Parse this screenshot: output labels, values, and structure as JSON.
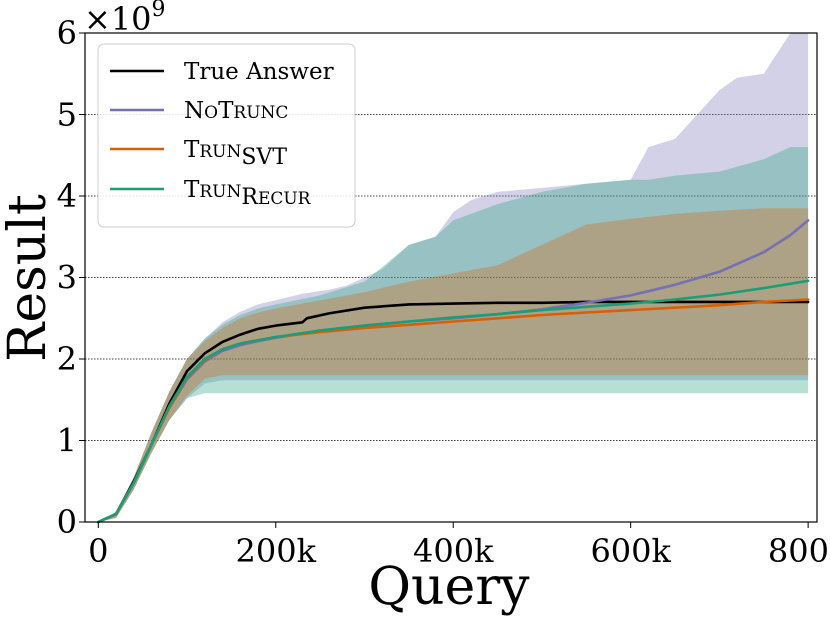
{
  "chart_data": {
    "type": "line",
    "xlabel": "Query",
    "ylabel": "Result",
    "y_scale_text": "×10",
    "y_scale_exponent": "9",
    "xlim": [
      -15000,
      810000
    ],
    "ylim": [
      0,
      6
    ],
    "x_ticks": [
      0,
      200000,
      400000,
      600000,
      800000
    ],
    "x_tick_labels": [
      "0",
      "200k",
      "400k",
      "600k",
      "800k"
    ],
    "y_ticks": [
      0,
      1,
      2,
      3,
      4,
      5,
      6
    ],
    "y_tick_labels": [
      "0",
      "1",
      "2",
      "3",
      "4",
      "5",
      "6"
    ],
    "grid": "horizontal dotted",
    "legend_position": "top-left",
    "series": [
      {
        "name": "True Answer",
        "color": "#000000",
        "x": [
          0,
          20000,
          40000,
          60000,
          80000,
          100000,
          120000,
          140000,
          160000,
          180000,
          200000,
          230000,
          235000,
          260000,
          300000,
          350000,
          400000,
          450000,
          500000,
          550000,
          600000,
          650000,
          700000,
          750000,
          800000
        ],
        "y": [
          0,
          0.1,
          0.5,
          0.95,
          1.45,
          1.85,
          2.07,
          2.21,
          2.3,
          2.37,
          2.41,
          2.45,
          2.5,
          2.56,
          2.63,
          2.67,
          2.68,
          2.69,
          2.69,
          2.7,
          2.7,
          2.7,
          2.7,
          2.7,
          2.7
        ]
      },
      {
        "name": "NoTrunc",
        "legend_parts": [
          {
            "text": "N",
            "size": "big"
          },
          {
            "text": "O",
            "size": "small"
          },
          {
            "text": "T",
            "size": "big"
          },
          {
            "text": "RUNC",
            "size": "small"
          }
        ],
        "color": "#7570b3",
        "x": [
          0,
          20000,
          40000,
          60000,
          80000,
          100000,
          120000,
          140000,
          160000,
          180000,
          200000,
          250000,
          300000,
          350000,
          400000,
          450000,
          500000,
          550000,
          600000,
          650000,
          700000,
          750000,
          780000,
          800000
        ],
        "y": [
          0,
          0.1,
          0.48,
          0.95,
          1.4,
          1.75,
          1.97,
          2.1,
          2.17,
          2.22,
          2.26,
          2.35,
          2.41,
          2.46,
          2.5,
          2.55,
          2.61,
          2.69,
          2.78,
          2.91,
          3.07,
          3.31,
          3.52,
          3.7
        ]
      },
      {
        "name": "TrunSVT",
        "legend_parts": [
          {
            "text": "T",
            "size": "big"
          },
          {
            "text": "RUN",
            "size": "small"
          },
          {
            "text": "SVT",
            "size": "sub"
          }
        ],
        "color": "#d95f02",
        "x": [
          0,
          20000,
          40000,
          60000,
          80000,
          100000,
          120000,
          140000,
          160000,
          180000,
          200000,
          250000,
          300000,
          350000,
          400000,
          450000,
          500000,
          550000,
          600000,
          650000,
          700000,
          750000,
          800000
        ],
        "y": [
          0,
          0.1,
          0.48,
          0.95,
          1.4,
          1.77,
          1.99,
          2.12,
          2.19,
          2.23,
          2.27,
          2.33,
          2.38,
          2.42,
          2.46,
          2.5,
          2.54,
          2.57,
          2.6,
          2.63,
          2.66,
          2.7,
          2.73
        ]
      },
      {
        "name": "TrunRecur",
        "legend_parts": [
          {
            "text": "T",
            "size": "big"
          },
          {
            "text": "RUN",
            "size": "small"
          },
          {
            "text": "R",
            "size": "sub-big"
          },
          {
            "text": "ECUR",
            "size": "sub-small"
          }
        ],
        "color": "#1b9e77",
        "x": [
          0,
          20000,
          40000,
          60000,
          80000,
          100000,
          120000,
          140000,
          160000,
          180000,
          200000,
          250000,
          300000,
          350000,
          400000,
          450000,
          500000,
          550000,
          600000,
          650000,
          700000,
          750000,
          800000
        ],
        "y": [
          0,
          0.1,
          0.48,
          0.95,
          1.42,
          1.78,
          2.0,
          2.12,
          2.19,
          2.23,
          2.27,
          2.35,
          2.41,
          2.46,
          2.51,
          2.55,
          2.6,
          2.64,
          2.68,
          2.73,
          2.79,
          2.87,
          2.96
        ]
      }
    ],
    "bands": [
      {
        "series": "NoTrunc",
        "color": "#7570b3",
        "x": [
          0,
          20000,
          40000,
          60000,
          80000,
          100000,
          120000,
          140000,
          160000,
          180000,
          200000,
          230000,
          260000,
          280000,
          300000,
          320000,
          350000,
          380000,
          400000,
          420000,
          450000,
          500000,
          550000,
          600000,
          620000,
          650000,
          700000,
          720000,
          750000,
          780000,
          800000
        ],
        "upper": [
          0,
          0.12,
          0.55,
          1.1,
          1.6,
          2.0,
          2.25,
          2.45,
          2.58,
          2.67,
          2.72,
          2.8,
          2.85,
          2.9,
          3.0,
          3.1,
          3.4,
          3.5,
          3.8,
          3.95,
          4.05,
          4.1,
          4.15,
          4.2,
          4.6,
          4.7,
          5.3,
          5.45,
          5.5,
          6.0,
          6.0
        ],
        "lower": [
          0,
          0.05,
          0.4,
          0.85,
          1.25,
          1.52,
          1.7,
          1.74,
          1.74,
          1.74,
          1.74,
          1.74,
          1.74,
          1.74,
          1.74,
          1.74,
          1.74,
          1.74,
          1.74,
          1.74,
          1.74,
          1.74,
          1.74,
          1.74,
          1.74,
          1.74,
          1.74,
          1.74,
          1.74,
          1.74,
          1.74
        ]
      },
      {
        "series": "TrunRecur",
        "color": "#1b9e77",
        "x": [
          0,
          20000,
          40000,
          60000,
          80000,
          100000,
          120000,
          140000,
          160000,
          180000,
          200000,
          250000,
          300000,
          350000,
          380000,
          400000,
          450000,
          500000,
          550000,
          600000,
          620000,
          650000,
          700000,
          750000,
          780000,
          800000
        ],
        "upper": [
          0,
          0.12,
          0.55,
          1.1,
          1.6,
          2.0,
          2.25,
          2.42,
          2.54,
          2.62,
          2.67,
          2.78,
          2.95,
          3.4,
          3.5,
          3.7,
          3.9,
          4.05,
          4.15,
          4.2,
          4.2,
          4.25,
          4.3,
          4.45,
          4.6,
          4.6
        ],
        "lower": [
          0,
          0.05,
          0.4,
          0.85,
          1.25,
          1.52,
          1.58,
          1.58,
          1.58,
          1.58,
          1.58,
          1.58,
          1.58,
          1.58,
          1.58,
          1.58,
          1.58,
          1.58,
          1.58,
          1.58,
          1.58,
          1.58,
          1.58,
          1.58,
          1.58,
          1.58
        ]
      },
      {
        "series": "TrunSVT",
        "color": "#d95f02",
        "x": [
          0,
          20000,
          40000,
          60000,
          80000,
          100000,
          120000,
          140000,
          160000,
          180000,
          200000,
          250000,
          300000,
          350000,
          400000,
          450000,
          500000,
          550000,
          600000,
          650000,
          700000,
          750000,
          800000
        ],
        "upper": [
          0,
          0.12,
          0.55,
          1.1,
          1.6,
          2.0,
          2.22,
          2.38,
          2.5,
          2.57,
          2.62,
          2.72,
          2.82,
          2.95,
          3.05,
          3.15,
          3.4,
          3.65,
          3.72,
          3.78,
          3.82,
          3.85,
          3.85
        ],
        "lower": [
          0,
          0.05,
          0.4,
          0.85,
          1.25,
          1.55,
          1.76,
          1.8,
          1.8,
          1.8,
          1.8,
          1.8,
          1.8,
          1.8,
          1.8,
          1.8,
          1.8,
          1.8,
          1.8,
          1.8,
          1.8,
          1.8,
          1.8
        ]
      }
    ]
  }
}
